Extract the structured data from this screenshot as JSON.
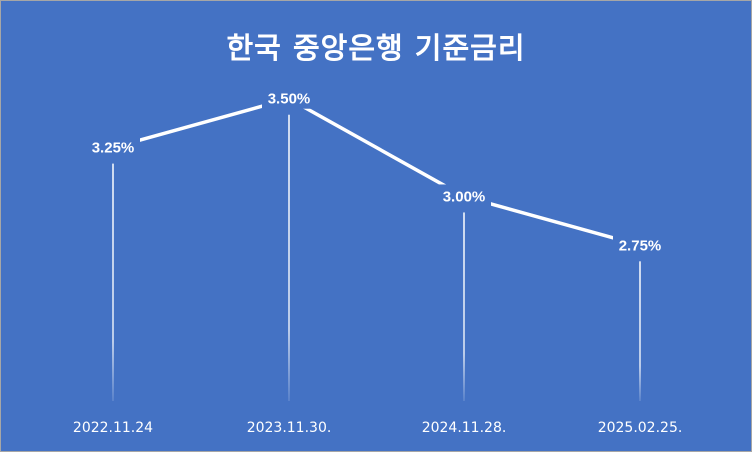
{
  "chart_data": {
    "type": "line",
    "title": "한국 중앙은행 기준금리",
    "categories": [
      "2022.11.24",
      "2023.11.30.",
      "2024.11.28.",
      "2025.02.25."
    ],
    "values": [
      3.25,
      3.5,
      3.0,
      2.75
    ],
    "data_labels": [
      "3.25%",
      "3.50%",
      "3.00%",
      "2.75%"
    ],
    "xlabel": "",
    "ylabel": "",
    "ylim": [
      2.0,
      3.75
    ],
    "grid": false,
    "drop_lines": true,
    "legend": "none",
    "colors": {
      "background": "#4472c4",
      "line": "#ffffff",
      "text": "#ffffff",
      "drop_line": "#ffffff"
    }
  }
}
